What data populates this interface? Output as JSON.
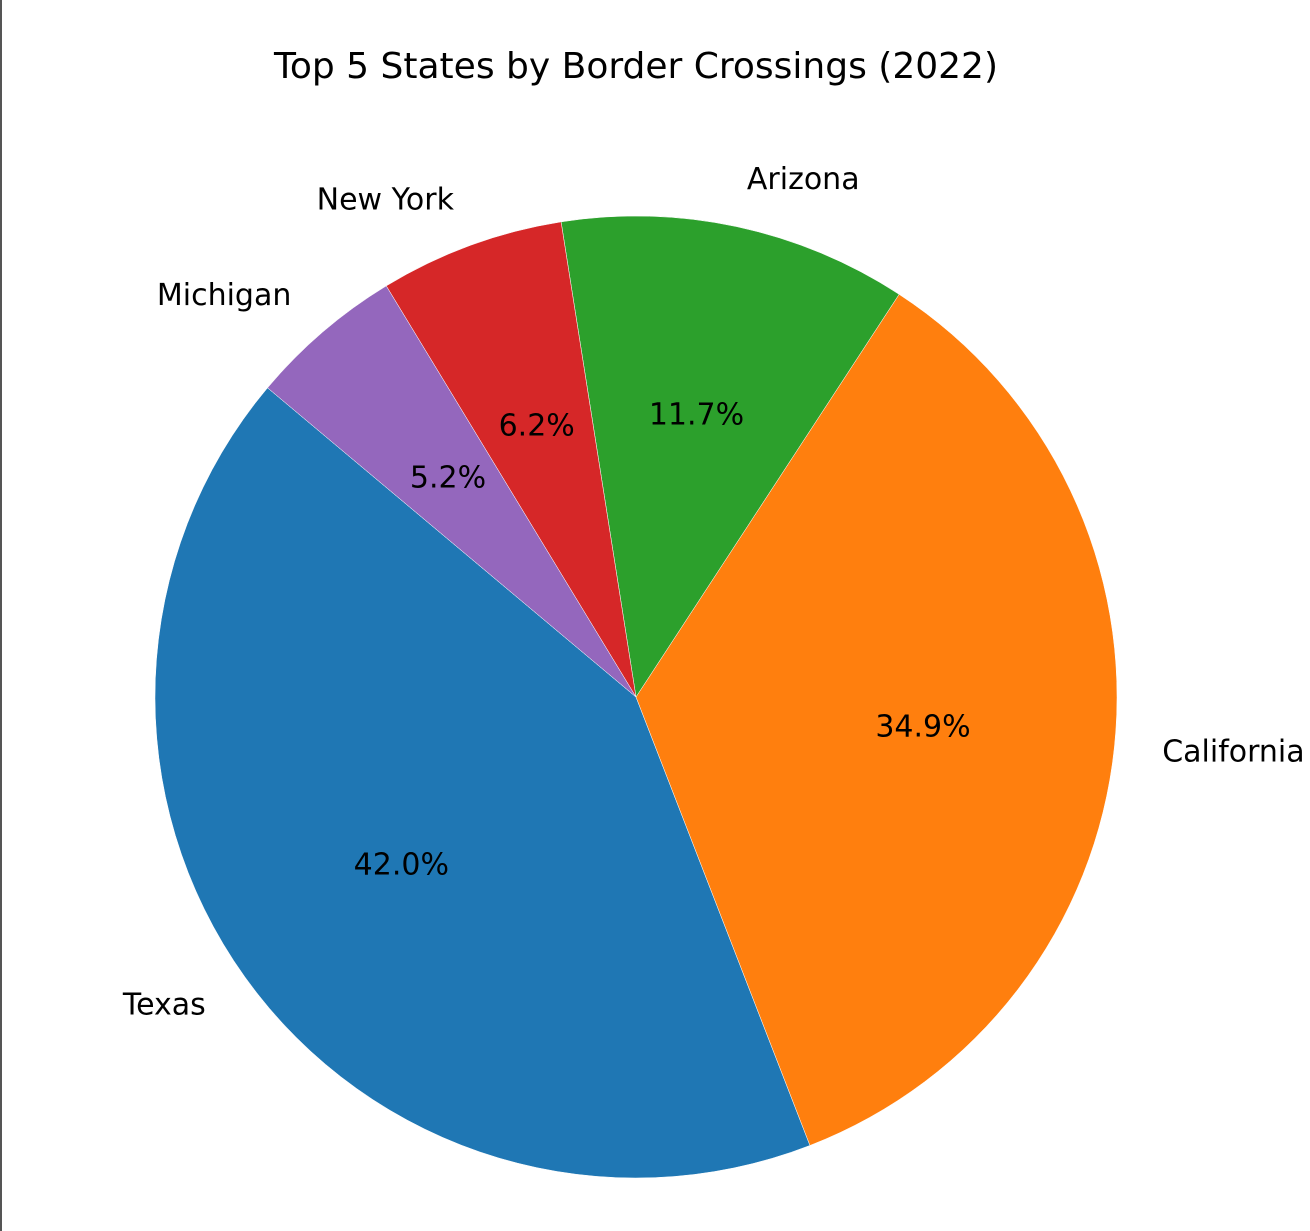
{
  "chart_data": {
    "type": "pie",
    "title": "Top 5 States by Border Crossings (2022)",
    "categories": [
      "Texas",
      "California",
      "Arizona",
      "New York",
      "Michigan"
    ],
    "values": [
      42.0,
      34.9,
      11.7,
      6.2,
      5.2
    ],
    "percent_labels": [
      "42.0%",
      "34.9%",
      "11.7%",
      "6.2%",
      "5.2%"
    ],
    "colors": [
      "#1f77b4",
      "#ff7f0e",
      "#2ca02c",
      "#d62728",
      "#9467bd"
    ],
    "start_angle_deg": 140,
    "direction": "counterclockwise",
    "legend": "none"
  }
}
